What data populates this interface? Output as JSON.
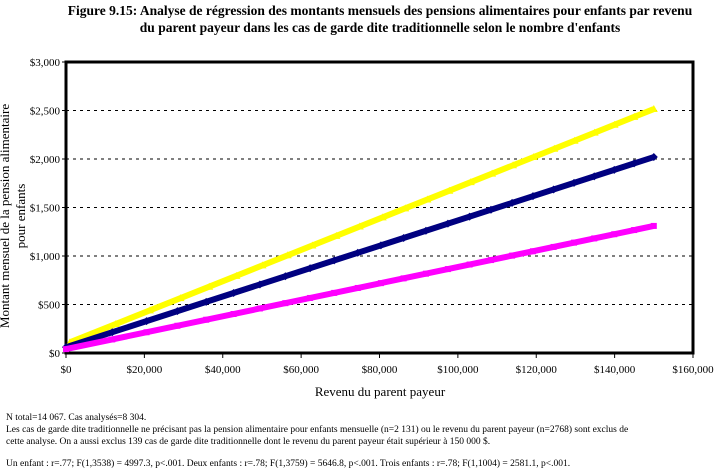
{
  "chart_data": {
    "type": "line",
    "title": "Figure 9.15:  Analyse de régression des montants mensuels des pensions alimentaires pour enfants par revenu du parent payeur dans les cas de garde dite traditionnelle selon le nombre d'enfants",
    "xlabel": "Revenu du parent payeur",
    "ylabel": "Montant mensuel de la pension alimentaire pour enfants",
    "xlim": [
      0,
      160000
    ],
    "ylim": [
      0,
      3000
    ],
    "x_ticks": [
      "$0",
      "$20,000",
      "$40,000",
      "$60,000",
      "$80,000",
      "$100,000",
      "$120,000",
      "$140,000",
      "$160,000"
    ],
    "y_ticks": [
      "$0",
      "$500",
      "$1,000",
      "$1,500",
      "$2,000",
      "$2,500",
      "$3,000"
    ],
    "grid": "horizontal dotted",
    "legend": "none",
    "series": [
      {
        "color": "#ffff00",
        "marker": "triangle",
        "x": [
          1000,
          150000
        ],
        "y": [
          110,
          2515
        ]
      },
      {
        "color": "#000080",
        "marker": "diamond",
        "x": [
          0,
          150000
        ],
        "y": [
          60,
          2020
        ]
      },
      {
        "color": "#ff00ff",
        "marker": "square",
        "x": [
          0,
          150000
        ],
        "y": [
          40,
          1310
        ]
      }
    ]
  },
  "notes": {
    "line1": "N total=14 067.  Cas analysés=8 304.",
    "line2": "Les cas de garde dite traditionnelle ne précisant pas la pension alimentaire pour enfants mensuelle (n=2 131) ou le revenu du parent payeur (n=2768) sont exclus de",
    "line3": "cette analyse. On a aussi exclus 139 cas de garde dite traditionnelle dont le revenu du parent payeur était supérieur à 150 000 $.",
    "line4": "Un enfant : r=.77; F(1,3538) = 4997.3, p<.001.  Deux enfants : r=.78; F(1,3759) = 5646.8, p<.001.  Trois enfants : r=.78; F(1,1004) = 2581.1, p<.001."
  }
}
